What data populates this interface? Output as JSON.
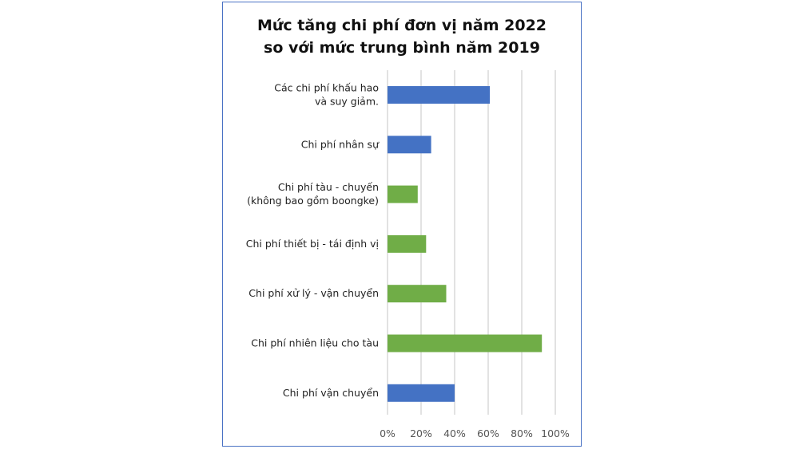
{
  "chart_data": {
    "type": "bar",
    "orientation": "horizontal",
    "title": [
      "Mức tăng chi phí đơn vị năm 2022",
      "so với mức trung bình năm 2019"
    ],
    "categories": [
      [
        "Các chi phí khấu hao",
        "và suy giảm."
      ],
      [
        "Chi phí nhân sự"
      ],
      [
        "Chi phí tàu - chuyến",
        "(không bao gồm boongke)"
      ],
      [
        "Chi phí thiết bị - tái định vị"
      ],
      [
        "Chi phí xử lý - vận chuyển"
      ],
      [
        "Chi phí nhiên liệu cho tàu"
      ],
      [
        "Chi phí vận chuyển"
      ]
    ],
    "values": [
      61,
      26,
      18,
      23,
      35,
      92,
      40
    ],
    "bar_colors": [
      "#4472c4",
      "#4472c4",
      "#70ad47",
      "#70ad47",
      "#70ad47",
      "#70ad47",
      "#4472c4"
    ],
    "x_ticks": [
      "0%",
      "20%",
      "40%",
      "60%",
      "80%",
      "100%"
    ],
    "xlim": [
      0,
      100
    ],
    "grid": true,
    "legend": "none"
  }
}
